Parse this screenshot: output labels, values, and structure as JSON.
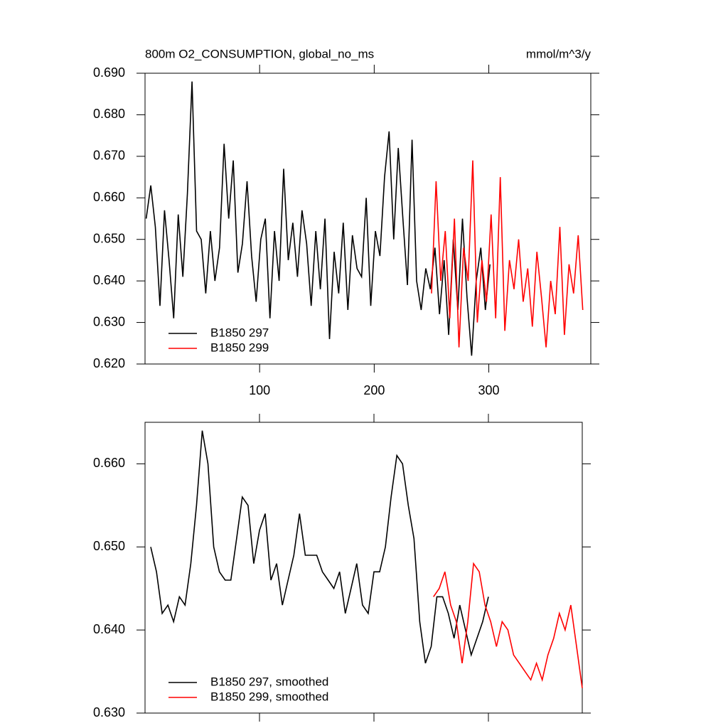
{
  "chart_data": [
    {
      "type": "line",
      "title": "800m O2_CONSUMPTION, global_no_ms",
      "units": "mmol/m^3/y",
      "xlim": [
        0,
        389
      ],
      "xticks": [
        100,
        200,
        300
      ],
      "ylim": [
        0.62,
        0.69
      ],
      "yticks": [
        {
          "value": 0.62,
          "label": "0.620"
        },
        {
          "value": 0.63,
          "label": "0.630"
        },
        {
          "value": 0.64,
          "label": "0.640"
        },
        {
          "value": 0.65,
          "label": "0.650"
        },
        {
          "value": 0.66,
          "label": "0.660"
        },
        {
          "value": 0.67,
          "label": "0.670"
        },
        {
          "value": 0.68,
          "label": "0.680"
        },
        {
          "value": 0.69,
          "label": "0.690"
        }
      ],
      "legend": "lower left",
      "series": [
        {
          "name": "B1850 297",
          "color": "#000000",
          "x": [
            1,
            5,
            9,
            13,
            17,
            21,
            25,
            29,
            33,
            37,
            41,
            45,
            49,
            53,
            57,
            61,
            65,
            69,
            73,
            77,
            81,
            85,
            89,
            93,
            97,
            101,
            105,
            109,
            113,
            117,
            121,
            125,
            129,
            133,
            137,
            141,
            145,
            149,
            153,
            157,
            161,
            165,
            169,
            173,
            177,
            181,
            185,
            189,
            193,
            197,
            201,
            205,
            209,
            213,
            217,
            221,
            225,
            229,
            233,
            237,
            241,
            245,
            249,
            253,
            257,
            261,
            265,
            269,
            273,
            277,
            281,
            285,
            289,
            293,
            297,
            301
          ],
          "values": [
            0.655,
            0.663,
            0.653,
            0.634,
            0.657,
            0.645,
            0.631,
            0.656,
            0.641,
            0.661,
            0.688,
            0.652,
            0.65,
            0.637,
            0.652,
            0.64,
            0.648,
            0.673,
            0.655,
            0.669,
            0.642,
            0.649,
            0.664,
            0.646,
            0.635,
            0.65,
            0.655,
            0.631,
            0.652,
            0.64,
            0.667,
            0.645,
            0.654,
            0.641,
            0.657,
            0.649,
            0.634,
            0.652,
            0.638,
            0.655,
            0.626,
            0.647,
            0.637,
            0.654,
            0.633,
            0.651,
            0.643,
            0.641,
            0.66,
            0.634,
            0.652,
            0.646,
            0.665,
            0.676,
            0.65,
            0.672,
            0.655,
            0.639,
            0.674,
            0.64,
            0.633,
            0.643,
            0.638,
            0.648,
            0.632,
            0.645,
            0.627,
            0.65,
            0.633,
            0.655,
            0.636,
            0.622,
            0.64,
            0.648,
            0.633,
            0.644
          ]
        },
        {
          "name": "B1850 299",
          "color": "#ff0000",
          "x": [
            250,
            254,
            258,
            262,
            266,
            270,
            274,
            278,
            282,
            286,
            290,
            294,
            298,
            302,
            306,
            310,
            314,
            318,
            322,
            326,
            330,
            334,
            338,
            342,
            346,
            350,
            354,
            358,
            362,
            366,
            370,
            374,
            378,
            382
          ],
          "values": [
            0.637,
            0.664,
            0.64,
            0.652,
            0.631,
            0.655,
            0.624,
            0.648,
            0.64,
            0.669,
            0.63,
            0.645,
            0.635,
            0.656,
            0.631,
            0.665,
            0.628,
            0.645,
            0.638,
            0.65,
            0.635,
            0.643,
            0.629,
            0.647,
            0.636,
            0.624,
            0.64,
            0.632,
            0.653,
            0.627,
            0.644,
            0.637,
            0.651,
            0.633
          ]
        }
      ]
    },
    {
      "type": "line",
      "xlim": [
        0,
        382
      ],
      "xticks": [
        100,
        200,
        300
      ],
      "ylim": [
        0.63,
        0.665
      ],
      "yticks": [
        {
          "value": 0.63,
          "label": "0.630"
        },
        {
          "value": 0.64,
          "label": "0.640"
        },
        {
          "value": 0.65,
          "label": "0.650"
        },
        {
          "value": 0.66,
          "label": "0.660"
        }
      ],
      "legend": "lower left",
      "series": [
        {
          "name": "B1850 297, smoothed",
          "color": "#000000",
          "x": [
            5,
            10,
            15,
            20,
            25,
            30,
            35,
            40,
            45,
            50,
            55,
            60,
            65,
            70,
            75,
            80,
            85,
            90,
            95,
            100,
            105,
            110,
            115,
            120,
            125,
            130,
            135,
            140,
            145,
            150,
            155,
            160,
            165,
            170,
            175,
            180,
            185,
            190,
            195,
            200,
            205,
            210,
            215,
            220,
            225,
            230,
            235,
            240,
            245,
            250,
            255,
            260,
            265,
            270,
            275,
            280,
            285,
            290,
            295,
            300
          ],
          "values": [
            0.65,
            0.647,
            0.642,
            0.643,
            0.641,
            0.644,
            0.643,
            0.648,
            0.655,
            0.664,
            0.66,
            0.65,
            0.647,
            0.646,
            0.646,
            0.651,
            0.656,
            0.655,
            0.648,
            0.652,
            0.654,
            0.646,
            0.648,
            0.643,
            0.646,
            0.649,
            0.654,
            0.649,
            0.649,
            0.649,
            0.647,
            0.646,
            0.645,
            0.647,
            0.642,
            0.645,
            0.648,
            0.643,
            0.642,
            0.647,
            0.647,
            0.65,
            0.656,
            0.661,
            0.66,
            0.655,
            0.651,
            0.641,
            0.636,
            0.638,
            0.644,
            0.644,
            0.642,
            0.639,
            0.643,
            0.64,
            0.637,
            0.639,
            0.641,
            0.644
          ]
        },
        {
          "name": "B1850 299, smoothed",
          "color": "#ff0000",
          "x": [
            252,
            257,
            262,
            267,
            272,
            277,
            282,
            287,
            292,
            297,
            302,
            307,
            312,
            317,
            322,
            327,
            332,
            337,
            342,
            347,
            352,
            357,
            362,
            367,
            372,
            377,
            382
          ],
          "values": [
            0.644,
            0.645,
            0.647,
            0.643,
            0.641,
            0.636,
            0.641,
            0.648,
            0.647,
            0.643,
            0.641,
            0.638,
            0.641,
            0.64,
            0.637,
            0.636,
            0.635,
            0.634,
            0.636,
            0.634,
            0.637,
            0.639,
            0.642,
            0.64,
            0.643,
            0.638,
            0.633
          ]
        }
      ]
    }
  ]
}
